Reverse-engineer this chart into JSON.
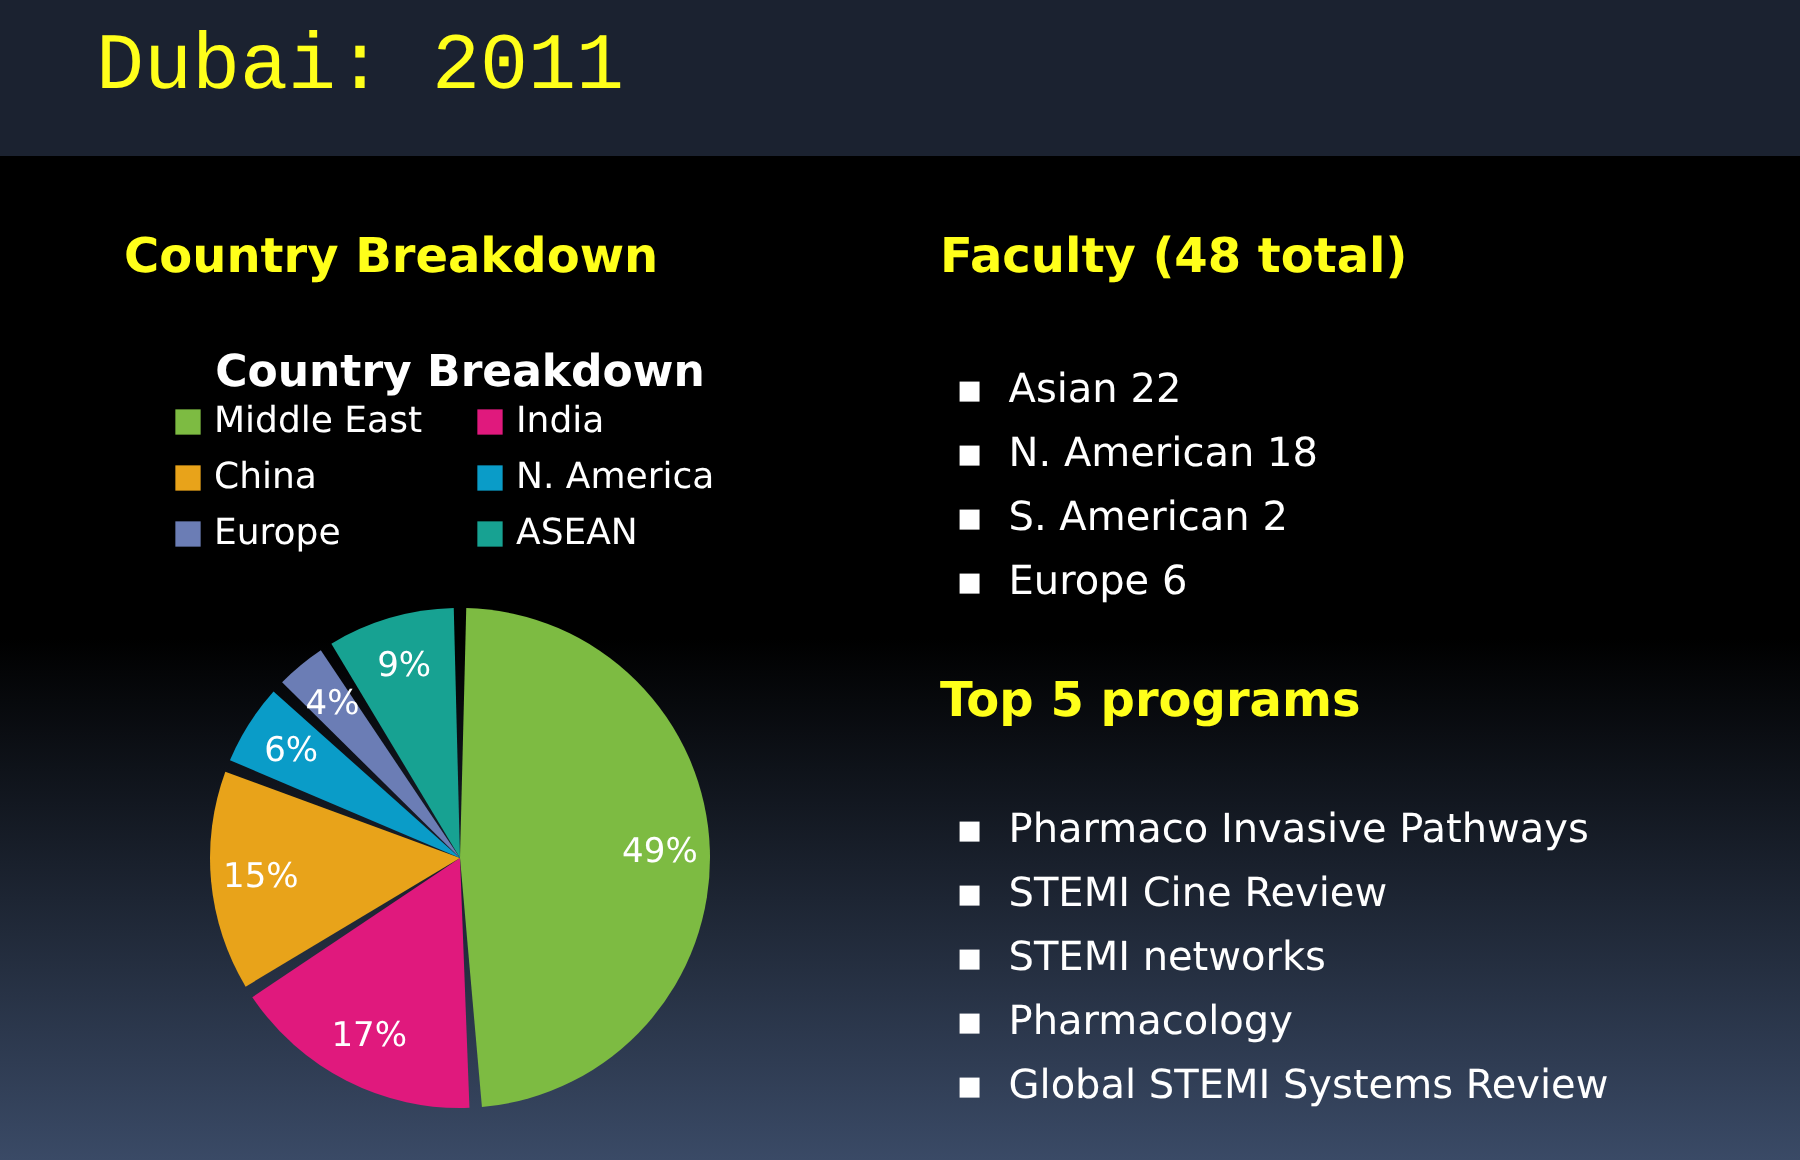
{
  "chart_data": {
    "type": "pie",
    "title": "Country Breakdown",
    "categories": [
      "Middle East",
      "India",
      "China",
      "N. America",
      "Europe",
      "ASEAN"
    ],
    "values": [
      49,
      17,
      15,
      6,
      4,
      9
    ],
    "colors": [
      "#7dbb42",
      "#e0197d",
      "#e8a31a",
      "#0a9cc8",
      "#6b7db5",
      "#17a292"
    ],
    "value_labels": [
      "49%",
      "17%",
      "15%",
      "6%",
      "4%",
      "9%"
    ],
    "legend": "top",
    "annotations": [
      "Dubai: 2011",
      "Country Breakdown",
      "Faculty (48 total)",
      "▪ Asian 22",
      "▪ N. American 18",
      "▪ S. American 2",
      "▪ Europe 6",
      "Top 5 programs",
      "▪ Pharmaco Invasive Pathways",
      "▪ STEMI Cine Review",
      "▪ STEMI networks",
      "▪ Pharmacology",
      "▪ Global STEMI Systems Review"
    ]
  }
}
